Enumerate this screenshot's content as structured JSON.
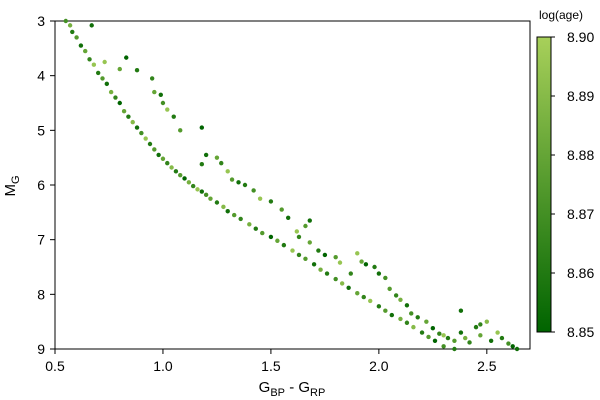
{
  "chart_data": {
    "type": "scatter",
    "title": "",
    "xlabel": {
      "main": "G",
      "sub1": "BP",
      "sep": " - ",
      "main2": "G",
      "sub2": "RP"
    },
    "ylabel": {
      "main": "M",
      "sub": "G"
    },
    "xlim": [
      0.5,
      2.7
    ],
    "ylim": [
      9,
      3
    ],
    "y_inverted": true,
    "grid": false,
    "x_ticks": [
      "0.5",
      "1.0",
      "1.5",
      "2.0",
      "2.5"
    ],
    "y_ticks": [
      "3",
      "4",
      "5",
      "6",
      "7",
      "8",
      "9"
    ],
    "colorbar": {
      "title": "log(age)",
      "min": 8.85,
      "max": 8.9,
      "ticks": [
        "8.85",
        "8.86",
        "8.87",
        "8.88",
        "8.89",
        "8.90"
      ],
      "color_low": "#006400",
      "color_high": "#a8d05a",
      "placement": "right"
    },
    "sequence_points": [
      [
        0.55,
        3.0,
        0.4
      ],
      [
        0.57,
        3.08,
        0.7
      ],
      [
        0.58,
        3.2,
        0.2
      ],
      [
        0.6,
        3.3,
        0.5
      ],
      [
        0.62,
        3.45,
        0.1
      ],
      [
        0.64,
        3.55,
        0.6
      ],
      [
        0.66,
        3.7,
        0.3
      ],
      [
        0.68,
        3.8,
        0.9
      ],
      [
        0.7,
        3.95,
        0.2
      ],
      [
        0.72,
        4.05,
        0.5
      ],
      [
        0.74,
        4.15,
        0.1
      ],
      [
        0.76,
        4.3,
        0.7
      ],
      [
        0.78,
        4.4,
        0.3
      ],
      [
        0.8,
        4.5,
        0.0
      ],
      [
        0.82,
        4.65,
        0.6
      ],
      [
        0.84,
        4.75,
        0.2
      ],
      [
        0.86,
        4.85,
        0.8
      ],
      [
        0.88,
        4.95,
        0.1
      ],
      [
        0.9,
        5.05,
        0.4
      ],
      [
        0.92,
        5.15,
        0.9
      ],
      [
        0.94,
        5.25,
        0.2
      ],
      [
        0.96,
        5.35,
        0.5
      ],
      [
        0.98,
        5.45,
        0.1
      ],
      [
        1.0,
        5.52,
        0.6
      ],
      [
        1.02,
        5.6,
        0.3
      ],
      [
        1.04,
        5.68,
        0.8
      ],
      [
        1.06,
        5.75,
        0.2
      ],
      [
        1.08,
        5.82,
        0.5
      ],
      [
        1.1,
        5.88,
        0.0
      ],
      [
        1.12,
        5.95,
        0.7
      ],
      [
        1.14,
        6.02,
        0.3
      ],
      [
        1.16,
        6.08,
        0.9
      ],
      [
        1.18,
        6.12,
        0.1
      ],
      [
        1.2,
        6.18,
        0.4
      ],
      [
        1.22,
        6.25,
        0.6
      ],
      [
        1.25,
        6.32,
        0.2
      ],
      [
        1.28,
        6.4,
        0.8
      ],
      [
        1.3,
        6.48,
        0.1
      ],
      [
        1.33,
        6.55,
        0.5
      ],
      [
        1.36,
        6.62,
        0.3
      ],
      [
        1.4,
        6.72,
        0.7
      ],
      [
        1.43,
        6.8,
        0.2
      ],
      [
        1.46,
        6.88,
        0.5
      ],
      [
        1.5,
        6.95,
        0.0
      ],
      [
        1.53,
        7.02,
        0.6
      ],
      [
        1.56,
        7.1,
        0.2
      ],
      [
        1.6,
        7.2,
        0.9
      ],
      [
        1.63,
        7.28,
        0.3
      ],
      [
        1.66,
        7.35,
        0.5
      ],
      [
        1.7,
        7.45,
        0.1
      ],
      [
        1.73,
        7.55,
        0.7
      ],
      [
        1.76,
        7.62,
        0.2
      ],
      [
        1.8,
        7.72,
        0.4
      ],
      [
        1.83,
        7.8,
        0.8
      ],
      [
        1.86,
        7.88,
        0.1
      ],
      [
        1.9,
        7.98,
        0.6
      ],
      [
        1.93,
        8.05,
        0.3
      ],
      [
        1.96,
        8.12,
        0.9
      ],
      [
        2.0,
        8.22,
        0.2
      ],
      [
        2.03,
        8.3,
        0.5
      ],
      [
        2.06,
        8.38,
        0.1
      ],
      [
        2.1,
        8.45,
        0.7
      ],
      [
        2.13,
        8.52,
        0.3
      ],
      [
        2.16,
        8.6,
        0.8
      ],
      [
        2.2,
        8.7,
        0.2
      ],
      [
        2.23,
        8.78,
        0.5
      ],
      [
        2.26,
        8.85,
        0.0
      ],
      [
        2.3,
        8.95,
        0.4
      ],
      [
        2.35,
        9.0,
        0.2
      ]
    ],
    "scatter_points": [
      [
        0.67,
        3.08,
        0.1
      ],
      [
        0.73,
        3.75,
        0.9
      ],
      [
        0.8,
        3.88,
        0.6
      ],
      [
        0.83,
        3.67,
        0.0
      ],
      [
        0.88,
        3.9,
        0.2
      ],
      [
        0.95,
        4.05,
        0.3
      ],
      [
        0.96,
        4.3,
        0.6
      ],
      [
        0.99,
        4.35,
        0.1
      ],
      [
        1.0,
        4.5,
        0.4
      ],
      [
        1.02,
        4.62,
        0.9
      ],
      [
        1.05,
        4.75,
        0.2
      ],
      [
        1.08,
        5.0,
        0.5
      ],
      [
        1.18,
        4.95,
        0.0
      ],
      [
        1.2,
        5.45,
        0.1
      ],
      [
        1.25,
        5.5,
        0.6
      ],
      [
        1.27,
        5.6,
        0.3
      ],
      [
        1.3,
        5.75,
        0.9
      ],
      [
        1.32,
        5.9,
        0.5
      ],
      [
        1.35,
        5.95,
        0.1
      ],
      [
        1.38,
        6.0,
        0.2
      ],
      [
        1.42,
        6.1,
        0.4
      ],
      [
        1.45,
        6.25,
        0.9
      ],
      [
        1.5,
        6.3,
        0.2
      ],
      [
        1.55,
        6.45,
        0.5
      ],
      [
        1.58,
        6.6,
        0.1
      ],
      [
        1.62,
        6.85,
        0.9
      ],
      [
        1.63,
        6.95,
        0.3
      ],
      [
        1.68,
        7.05,
        0.6
      ],
      [
        1.72,
        7.2,
        0.2
      ],
      [
        1.75,
        7.28,
        0.0
      ],
      [
        1.8,
        7.32,
        0.5
      ],
      [
        1.82,
        7.42,
        0.9
      ],
      [
        1.87,
        7.62,
        0.3
      ],
      [
        1.9,
        7.25,
        0.9
      ],
      [
        1.92,
        7.4,
        0.6
      ],
      [
        1.94,
        7.45,
        0.0
      ],
      [
        1.98,
        7.5,
        0.2
      ],
      [
        2.0,
        7.62,
        0.1
      ],
      [
        2.03,
        7.7,
        0.4
      ],
      [
        2.05,
        7.9,
        0.5
      ],
      [
        2.08,
        8.02,
        0.3
      ],
      [
        2.1,
        8.1,
        0.7
      ],
      [
        2.13,
        8.2,
        0.1
      ],
      [
        2.15,
        8.35,
        0.4
      ],
      [
        2.18,
        8.42,
        0.2
      ],
      [
        2.22,
        8.5,
        0.6
      ],
      [
        2.25,
        8.62,
        0.0
      ],
      [
        2.28,
        8.72,
        0.3
      ],
      [
        2.3,
        8.75,
        0.9
      ],
      [
        2.32,
        8.8,
        0.2
      ],
      [
        2.35,
        8.85,
        0.5
      ],
      [
        2.38,
        8.7,
        0.1
      ],
      [
        2.4,
        8.8,
        0.7
      ],
      [
        2.42,
        8.88,
        0.3
      ],
      [
        2.45,
        8.6,
        0.2
      ],
      [
        2.47,
        8.75,
        0.6
      ],
      [
        2.5,
        8.5,
        0.8
      ],
      [
        2.52,
        8.85,
        0.1
      ],
      [
        2.55,
        8.7,
        0.9
      ],
      [
        2.57,
        8.8,
        0.2
      ],
      [
        2.6,
        8.9,
        0.4
      ],
      [
        2.62,
        8.95,
        0.0
      ],
      [
        2.64,
        9.0,
        0.1
      ],
      [
        2.38,
        8.3,
        0.1
      ],
      [
        2.47,
        8.55,
        0.3
      ],
      [
        1.68,
        6.65,
        0.1
      ],
      [
        1.66,
        6.75,
        0.5
      ],
      [
        1.18,
        5.62,
        0.2
      ]
    ]
  }
}
